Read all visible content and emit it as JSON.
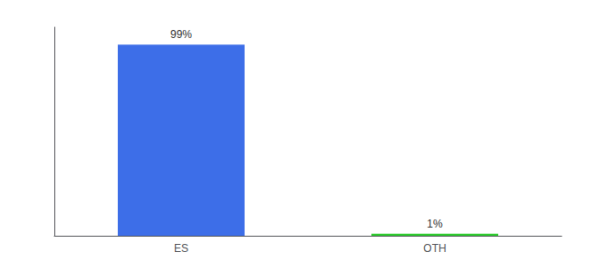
{
  "chart_data": {
    "type": "bar",
    "categories": [
      "ES",
      "OTH"
    ],
    "values": [
      99,
      1
    ],
    "colors": [
      "#3d6ee8",
      "#2ecc2e"
    ],
    "data_labels": true,
    "value_labels": [
      "99%",
      "1%"
    ],
    "ylim": [
      0,
      108
    ],
    "tick_labels": "x",
    "grid": false
  }
}
